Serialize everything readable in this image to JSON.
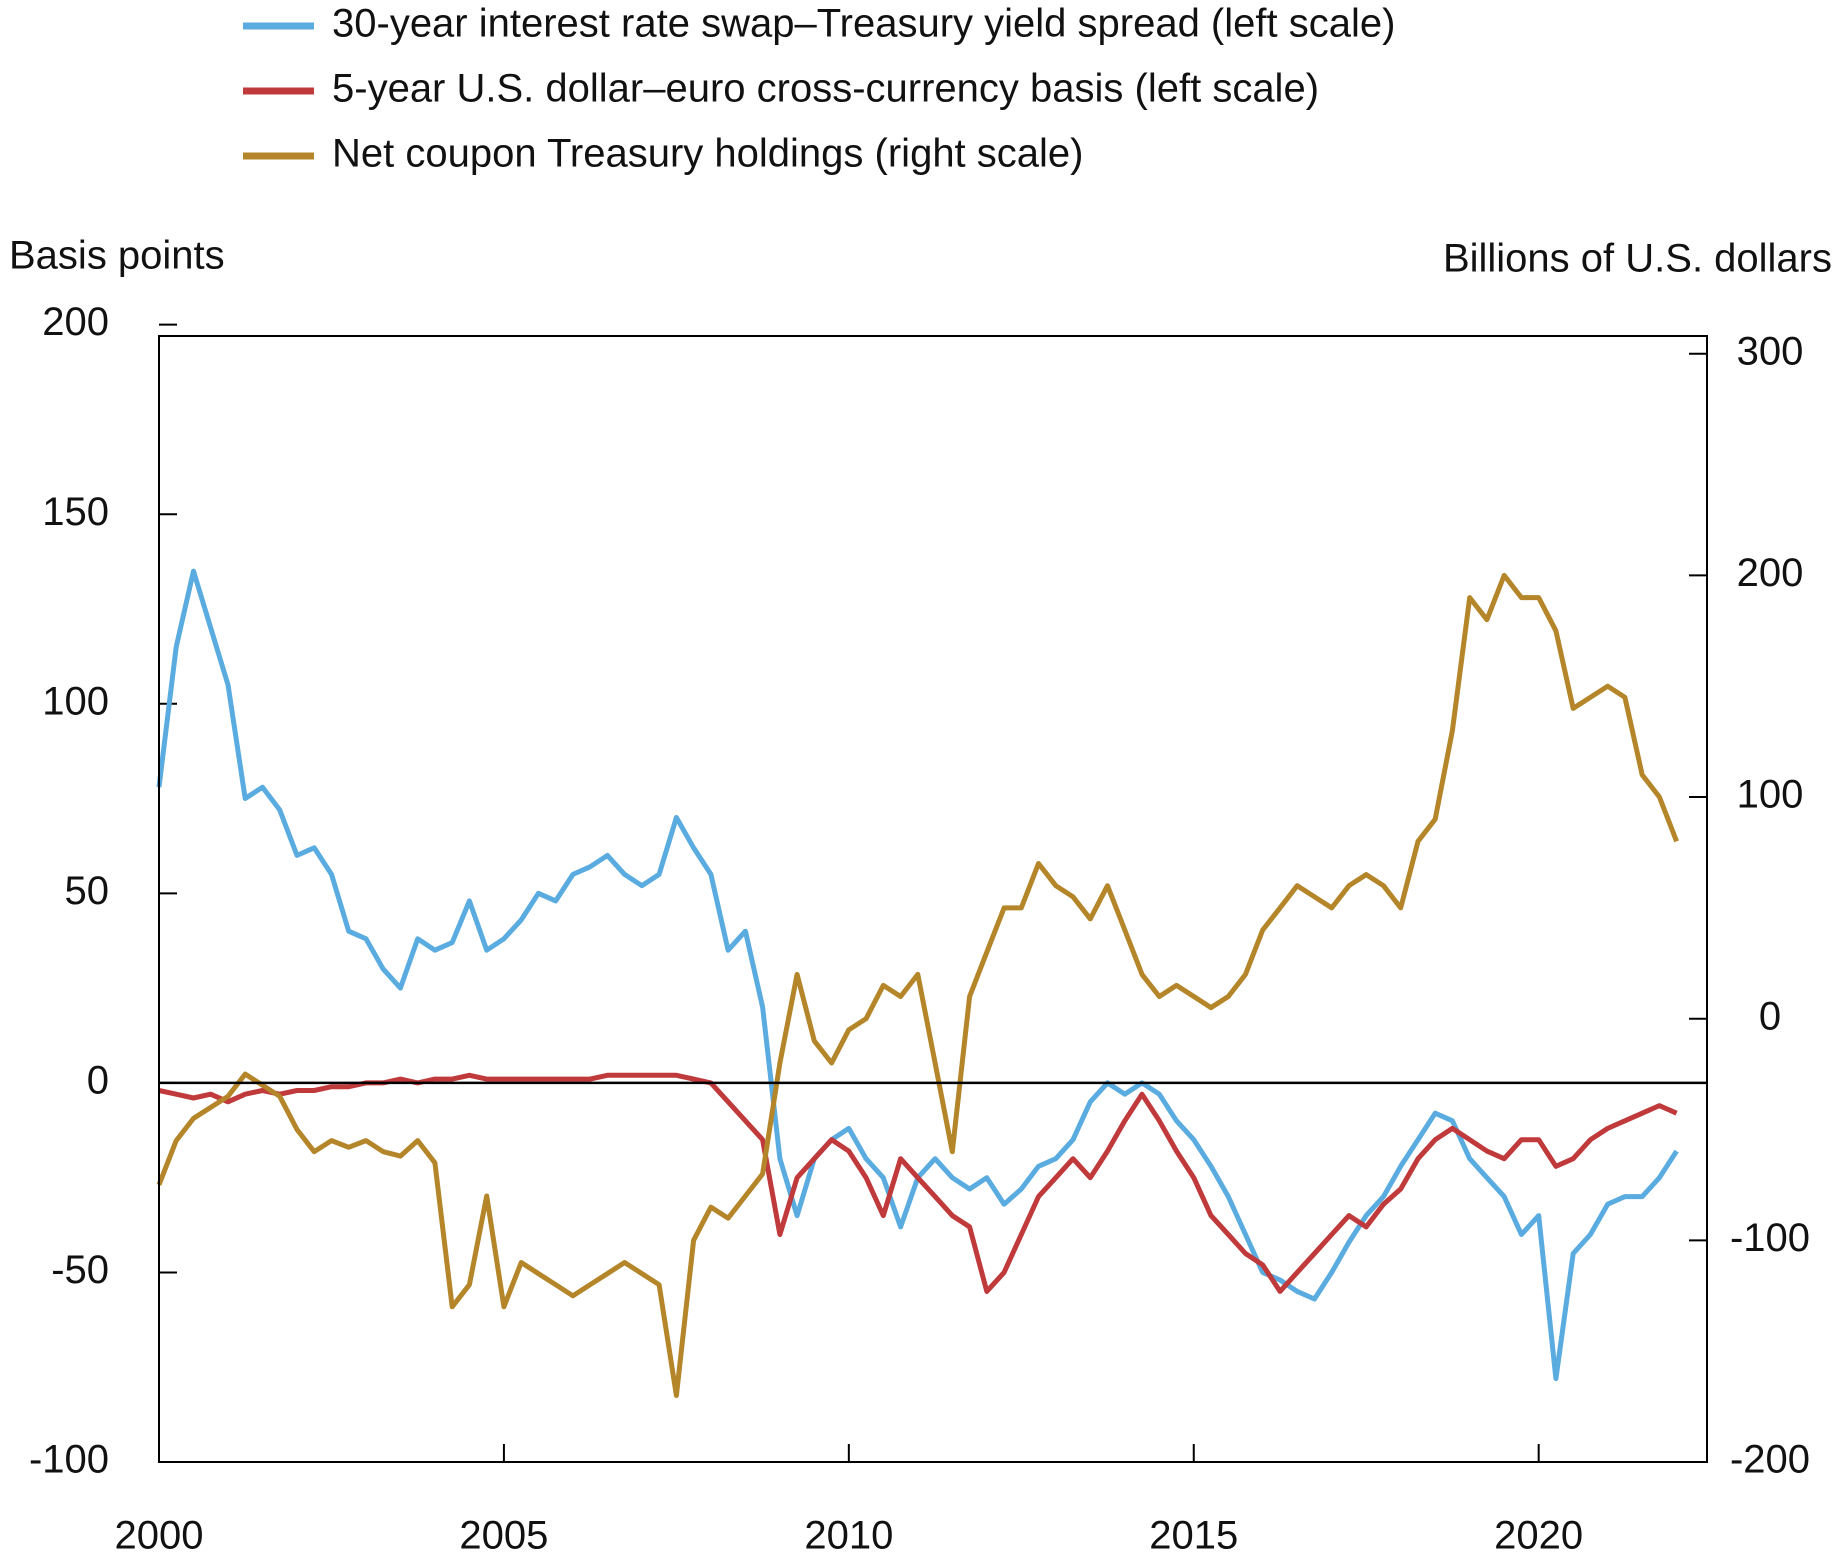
{
  "chart_data": {
    "type": "line",
    "y_label": "Basis points",
    "y2_label": "Billions of U.S. dollars",
    "legend": "top",
    "x": [
      2000,
      2000.25,
      2000.5,
      2000.75,
      2001,
      2001.25,
      2001.5,
      2001.75,
      2002,
      2002.25,
      2002.5,
      2002.75,
      2003,
      2003.25,
      2003.5,
      2003.75,
      2004,
      2004.25,
      2004.5,
      2004.75,
      2005,
      2005.25,
      2005.5,
      2005.75,
      2006,
      2006.25,
      2006.5,
      2006.75,
      2007,
      2007.25,
      2007.5,
      2007.75,
      2008,
      2008.25,
      2008.5,
      2008.75,
      2009,
      2009.25,
      2009.5,
      2009.75,
      2010,
      2010.25,
      2010.5,
      2010.75,
      2011,
      2011.25,
      2011.5,
      2011.75,
      2012,
      2012.25,
      2012.5,
      2012.75,
      2013,
      2013.25,
      2013.5,
      2013.75,
      2014,
      2014.25,
      2014.5,
      2014.75,
      2015,
      2015.25,
      2015.5,
      2015.75,
      2016,
      2016.25,
      2016.5,
      2016.75,
      2017,
      2017.25,
      2017.5,
      2017.75,
      2018,
      2018.25,
      2018.5,
      2018.75,
      2019,
      2019.25,
      2019.5,
      2019.75,
      2020,
      2020.25,
      2020.5,
      2020.75,
      2021,
      2021.25,
      2021.5,
      2021.75,
      2022
    ],
    "series": [
      {
        "name": "30-year interest rate swap–Treasury yield spread (left scale)",
        "color": "#5aace0",
        "axis": "y",
        "values": [
          78,
          115,
          135,
          120,
          105,
          75,
          78,
          72,
          60,
          62,
          55,
          40,
          38,
          30,
          25,
          38,
          35,
          37,
          48,
          35,
          38,
          43,
          50,
          48,
          55,
          57,
          60,
          55,
          52,
          55,
          70,
          62,
          55,
          35,
          40,
          20,
          -20,
          -35,
          -20,
          -15,
          -12,
          -20,
          -25,
          -38,
          -25,
          -20,
          -25,
          -28,
          -25,
          -32,
          -28,
          -22,
          -20,
          -15,
          -5,
          0,
          -3,
          0,
          -3,
          -10,
          -15,
          -22,
          -30,
          -40,
          -50,
          -52,
          -55,
          -57,
          -50,
          -42,
          -35,
          -30,
          -22,
          -15,
          -8,
          -10,
          -20,
          -25,
          -30,
          -40,
          -35,
          -78,
          -45,
          -40,
          -32,
          -30,
          -30,
          -25,
          -18
        ]
      },
      {
        "name": "5-year U.S. dollar–euro cross-currency basis (left scale)",
        "color": "#c0393b",
        "axis": "y",
        "values": [
          -2,
          -3,
          -4,
          -3,
          -5,
          -3,
          -2,
          -3,
          -2,
          -2,
          -1,
          -1,
          0,
          0,
          1,
          0,
          1,
          1,
          2,
          1,
          1,
          1,
          1,
          1,
          1,
          1,
          2,
          2,
          2,
          2,
          2,
          1,
          0,
          -5,
          -10,
          -15,
          -40,
          -25,
          -20,
          -15,
          -18,
          -25,
          -35,
          -20,
          -25,
          -30,
          -35,
          -38,
          -55,
          -50,
          -40,
          -30,
          -25,
          -20,
          -25,
          -18,
          -10,
          -3,
          -10,
          -18,
          -25,
          -35,
          -40,
          -45,
          -48,
          -55,
          -50,
          -45,
          -40,
          -35,
          -38,
          -32,
          -28,
          -20,
          -15,
          -12,
          -15,
          -18,
          -20,
          -15,
          -15,
          -22,
          -20,
          -15,
          -12,
          -10,
          -8,
          -6,
          -8
        ]
      },
      {
        "name": "Net coupon Treasury holdings (right scale)",
        "color": "#b5852a",
        "axis": "y2",
        "values": [
          -75,
          -55,
          -45,
          -40,
          -35,
          -25,
          -30,
          -35,
          -50,
          -60,
          -55,
          -58,
          -55,
          -60,
          -62,
          -55,
          -65,
          -130,
          -120,
          -80,
          -130,
          -110,
          -115,
          -120,
          -125,
          -120,
          -115,
          -110,
          -115,
          -120,
          -170,
          -100,
          -85,
          -90,
          -80,
          -70,
          -20,
          20,
          -10,
          -20,
          -5,
          0,
          15,
          10,
          20,
          -20,
          -60,
          10,
          30,
          50,
          50,
          70,
          60,
          55,
          45,
          60,
          40,
          20,
          10,
          15,
          10,
          5,
          10,
          20,
          40,
          50,
          60,
          55,
          50,
          60,
          65,
          60,
          50,
          80,
          90,
          130,
          190,
          180,
          200,
          190,
          190,
          175,
          140,
          145,
          150,
          145,
          110,
          100,
          80
        ]
      }
    ],
    "xlim": [
      2000,
      2022.44
    ],
    "xticks": [
      2000,
      2005,
      2010,
      2015,
      2020
    ],
    "ylim": [
      -100,
      197
    ],
    "yticks": [
      -100,
      -50,
      0,
      50,
      100,
      150,
      200
    ],
    "y2lim": [
      -200,
      308
    ],
    "y2ticks": [
      -200,
      -100,
      0,
      100,
      200,
      300
    ],
    "zero_line": true
  }
}
